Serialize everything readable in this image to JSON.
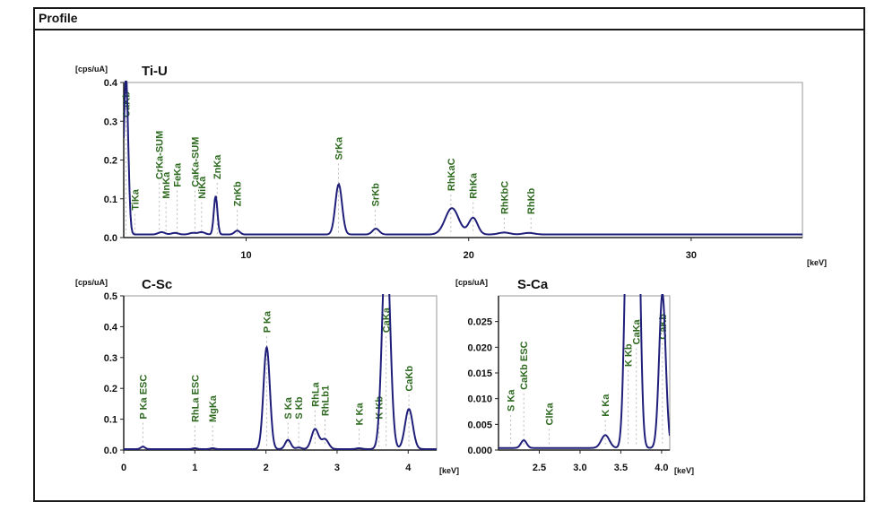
{
  "window": {
    "title": "Profile"
  },
  "colors": {
    "trace": "#1f1f7a",
    "peak_label": "#2d6a1f",
    "axis": "#222222",
    "plot_border": "#9a9a9a"
  },
  "chart_data": [
    {
      "type": "line",
      "title": "Ti-U",
      "ylabel": "[cps/uA]",
      "xlabel": "[keV]",
      "xlim": [
        4.5,
        35
      ],
      "ylim": [
        0,
        0.4
      ],
      "xticks": [
        10,
        20,
        30
      ],
      "yticks": [
        "0.0",
        "0.1",
        "0.2",
        "0.3",
        "0.4"
      ],
      "baseline": 0.008,
      "peaks": [
        {
          "x": 4.6,
          "h": 0.41,
          "w": 0.1
        },
        {
          "x": 6.2,
          "h": 0.006,
          "w": 0.15
        },
        {
          "x": 6.8,
          "h": 0.004,
          "w": 0.15
        },
        {
          "x": 7.6,
          "h": 0.004,
          "w": 0.15
        },
        {
          "x": 8.0,
          "h": 0.006,
          "w": 0.15
        },
        {
          "x": 8.63,
          "h": 0.1,
          "w": 0.08
        },
        {
          "x": 9.6,
          "h": 0.01,
          "w": 0.12
        },
        {
          "x": 14.16,
          "h": 0.13,
          "w": 0.15
        },
        {
          "x": 15.83,
          "h": 0.015,
          "w": 0.15
        },
        {
          "x": 19.25,
          "h": 0.068,
          "w": 0.3
        },
        {
          "x": 20.2,
          "h": 0.043,
          "w": 0.2
        },
        {
          "x": 21.6,
          "h": 0.005,
          "w": 0.25
        },
        {
          "x": 22.7,
          "h": 0.004,
          "w": 0.25
        }
      ],
      "annotations": [
        {
          "label": "CaKb",
          "x": 4.6,
          "y": 0.31
        },
        {
          "label": "TiKa",
          "x": 5.0,
          "y": 0.07
        },
        {
          "label": "CrKa-SUM",
          "x": 6.1,
          "y": 0.15
        },
        {
          "label": "MnKa",
          "x": 6.4,
          "y": 0.1
        },
        {
          "label": "FeKa",
          "x": 6.9,
          "y": 0.13
        },
        {
          "label": "CaKa-SUM",
          "x": 7.7,
          "y": 0.13
        },
        {
          "label": "NiKa",
          "x": 8.0,
          "y": 0.1
        },
        {
          "label": "ZnKa",
          "x": 8.7,
          "y": 0.15
        },
        {
          "label": "ZnKb",
          "x": 9.6,
          "y": 0.08
        },
        {
          "label": "SrKa",
          "x": 14.15,
          "y": 0.2
        },
        {
          "label": "SrKb",
          "x": 15.8,
          "y": 0.08
        },
        {
          "label": "RhKaC",
          "x": 19.2,
          "y": 0.12
        },
        {
          "label": "RhKa",
          "x": 20.2,
          "y": 0.1
        },
        {
          "label": "RhKbC",
          "x": 21.6,
          "y": 0.06
        },
        {
          "label": "RhKb",
          "x": 22.8,
          "y": 0.06
        }
      ]
    },
    {
      "type": "line",
      "title": "C-Sc",
      "ylabel": "[cps/uA]",
      "xlabel": "[keV]",
      "xlim": [
        0,
        4.4
      ],
      "ylim": [
        0,
        0.5
      ],
      "xticks": [
        0,
        1,
        2,
        3,
        4
      ],
      "yticks": [
        "0.0",
        "0.1",
        "0.2",
        "0.3",
        "0.4",
        "0.5"
      ],
      "baseline": 0.003,
      "peaks": [
        {
          "x": 0.27,
          "h": 0.008,
          "w": 0.03
        },
        {
          "x": 1.0,
          "h": 0.003,
          "w": 0.03
        },
        {
          "x": 1.25,
          "h": 0.003,
          "w": 0.03
        },
        {
          "x": 2.01,
          "h": 0.33,
          "w": 0.045
        },
        {
          "x": 2.31,
          "h": 0.03,
          "w": 0.04
        },
        {
          "x": 2.46,
          "h": 0.005,
          "w": 0.04
        },
        {
          "x": 2.69,
          "h": 0.065,
          "w": 0.05
        },
        {
          "x": 2.83,
          "h": 0.032,
          "w": 0.05
        },
        {
          "x": 3.31,
          "h": 0.003,
          "w": 0.04
        },
        {
          "x": 3.69,
          "h": 0.7,
          "w": 0.055
        },
        {
          "x": 4.01,
          "h": 0.13,
          "w": 0.055
        }
      ],
      "annotations": [
        {
          "label": "P Ka ESC",
          "x": 0.27,
          "y": 0.1
        },
        {
          "label": "RhLa ESC",
          "x": 1.0,
          "y": 0.09
        },
        {
          "label": "MgKa",
          "x": 1.25,
          "y": 0.09
        },
        {
          "label": "P Ka",
          "x": 2.01,
          "y": 0.38
        },
        {
          "label": "S Ka",
          "x": 2.31,
          "y": 0.1
        },
        {
          "label": "S Kb",
          "x": 2.46,
          "y": 0.1
        },
        {
          "label": "RhLa",
          "x": 2.69,
          "y": 0.14
        },
        {
          "label": "RhLb1",
          "x": 2.83,
          "y": 0.11
        },
        {
          "label": "K Ka",
          "x": 3.31,
          "y": 0.08
        },
        {
          "label": "K Kb",
          "x": 3.59,
          "y": 0.1
        },
        {
          "label": "CaKa",
          "x": 3.69,
          "y": 0.38
        },
        {
          "label": "CaKb",
          "x": 4.01,
          "y": 0.19
        }
      ]
    },
    {
      "type": "line",
      "title": "S-Ca",
      "ylabel": "[cps/uA]",
      "xlabel": "[keV]",
      "xlim": [
        2.0,
        4.1
      ],
      "ylim": [
        0,
        0.03
      ],
      "xticks": [
        "2.5",
        "3.0",
        "3.5",
        "4.0"
      ],
      "yticks": [
        "0.000",
        "0.005",
        "0.010",
        "0.015",
        "0.020",
        "0.025"
      ],
      "baseline": 0.0004,
      "peaks": [
        {
          "x": 2.31,
          "h": 0.0015,
          "w": 0.035
        },
        {
          "x": 3.31,
          "h": 0.0025,
          "w": 0.05
        },
        {
          "x": 3.59,
          "h": 0.055,
          "w": 0.04
        },
        {
          "x": 3.69,
          "h": 0.07,
          "w": 0.04
        },
        {
          "x": 4.01,
          "h": 0.03,
          "w": 0.04
        }
      ],
      "annotations": [
        {
          "label": "S Ka",
          "x": 2.15,
          "y": 0.0075
        },
        {
          "label": "CaKb ESC",
          "x": 2.31,
          "y": 0.0117
        },
        {
          "label": "ClKa",
          "x": 2.62,
          "y": 0.0048
        },
        {
          "label": "K Ka",
          "x": 3.31,
          "y": 0.0065
        },
        {
          "label": "K Kb",
          "x": 3.59,
          "y": 0.0162
        },
        {
          "label": "CaKa",
          "x": 3.69,
          "y": 0.0205
        },
        {
          "label": "CaKb",
          "x": 4.01,
          "y": 0.0215
        }
      ]
    }
  ]
}
